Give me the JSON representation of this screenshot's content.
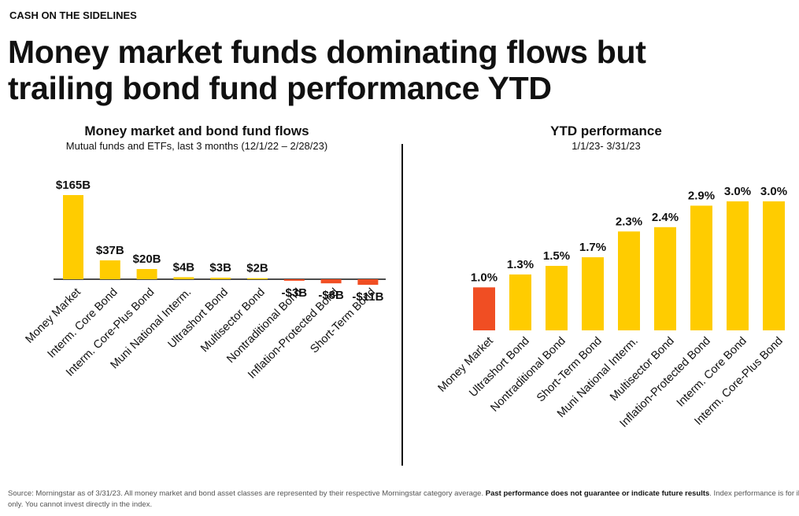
{
  "header": {
    "kicker": "CASH ON THE SIDELINES",
    "title_lines": [
      "Money market funds dominating flows but",
      "trailing bond fund performance YTD"
    ]
  },
  "chart_data": [
    {
      "type": "bar",
      "title": "Money market and bond fund flows",
      "subtitle": "Mutual funds and ETFs, last 3 months (12/1/22 – 2/28/23)",
      "categories": [
        "Money Market",
        "Interm. Core Bond",
        "Interm. Core-Plus Bond",
        "Muni National Interm.",
        "Ultrashort Bond",
        "Multisector Bond",
        "Nontraditional Bond",
        "Inflation-Protected Bond",
        "Short-Term Bond"
      ],
      "values": [
        165,
        37,
        20,
        4,
        3,
        2,
        -3,
        -8,
        -11
      ],
      "value_labels": [
        "$165B",
        "$37B",
        "$20B",
        "$4B",
        "$3B",
        "$2B",
        "-$3B",
        "-$8B",
        "-$11B"
      ],
      "color": "#FFCC00",
      "negative_color": "#F04E23"
    },
    {
      "type": "bar",
      "title": "YTD performance",
      "subtitle": "1/1/23- 3/31/23",
      "categories": [
        "Money Market",
        "Ultrashort Bond",
        "Nontraditional Bond",
        "Short-Term Bond",
        "Muni National Interm.",
        "Multisector Bond",
        "Inflation-Protected Bond",
        "Interm. Core Bond",
        "Interm. Core-Plus Bond"
      ],
      "values": [
        1.0,
        1.3,
        1.5,
        1.7,
        2.3,
        2.4,
        2.9,
        3.0,
        3.0
      ],
      "value_labels": [
        "1.0%",
        "1.3%",
        "1.5%",
        "1.7%",
        "2.3%",
        "2.4%",
        "2.9%",
        "3.0%",
        "3.0%"
      ],
      "colors": [
        "#F04E23",
        "#FFCC00",
        "#FFCC00",
        "#FFCC00",
        "#FFCC00",
        "#FFCC00",
        "#FFCC00",
        "#FFCC00",
        "#FFCC00"
      ]
    }
  ],
  "footnote": [
    "Source: Morningstar as of 3/31/23. All money market and bond asset classes are represented by their respective Morningstar category average. ",
    "Past performance does not guarantee or indicate future results",
    ". Index performance is for illustrative purposes",
    "only. You cannot invest directly in the index."
  ]
}
